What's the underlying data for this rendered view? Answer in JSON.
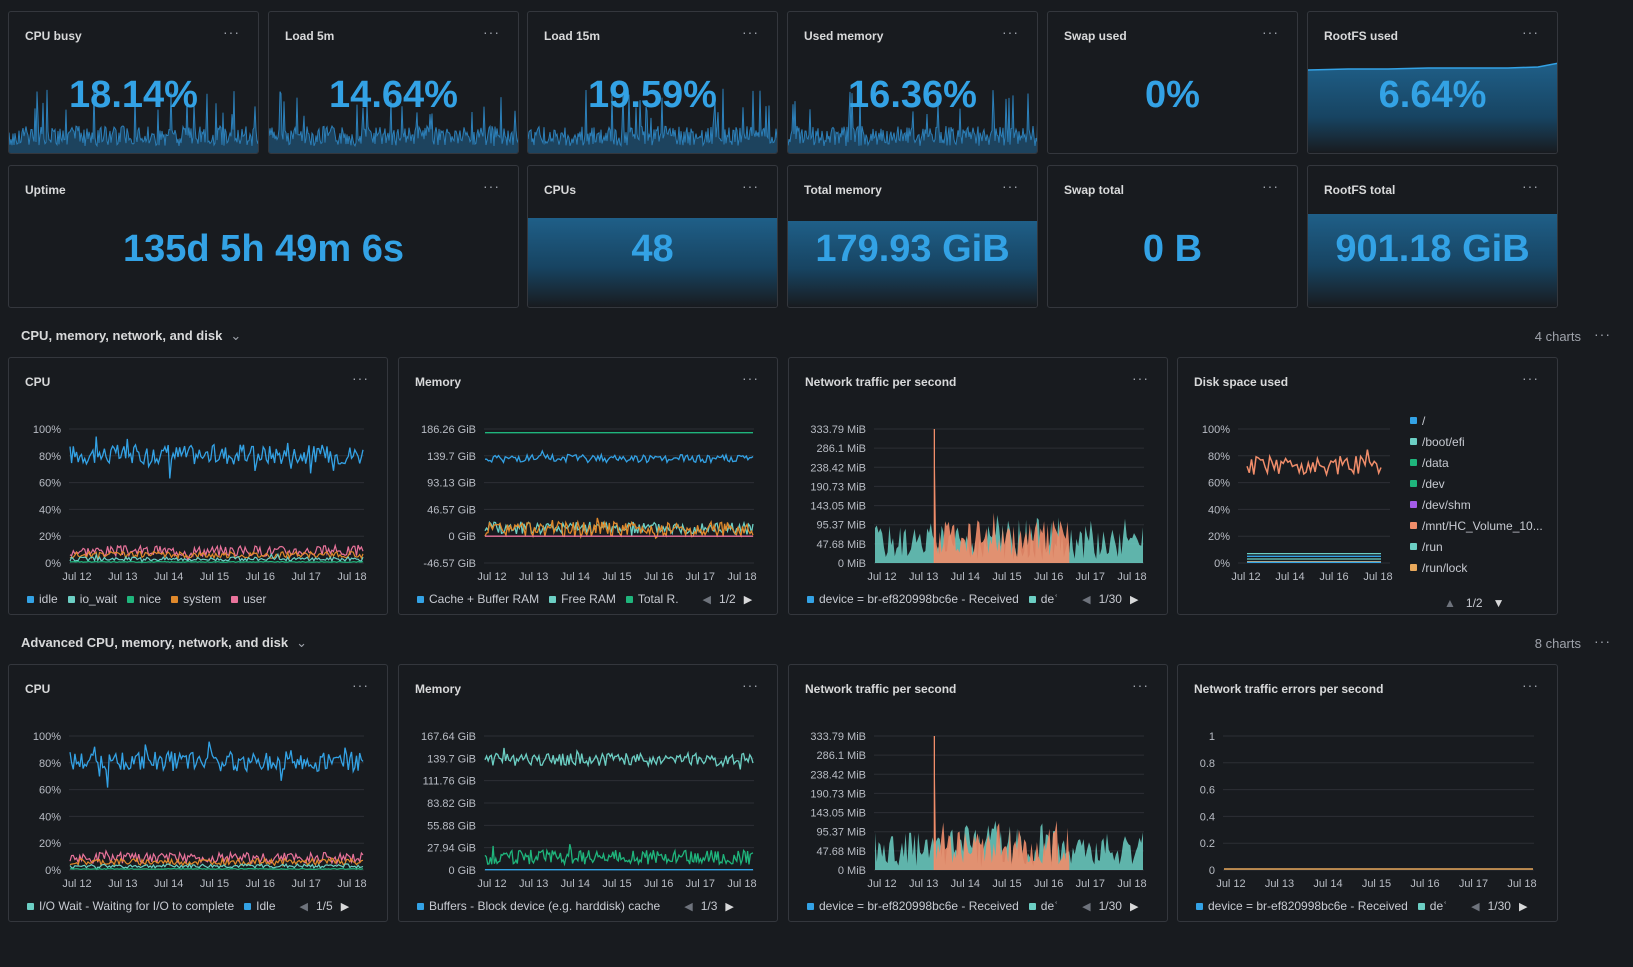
{
  "stats_row1": [
    {
      "title": "CPU busy",
      "value": "18.14%",
      "style": "spark"
    },
    {
      "title": "Load 5m",
      "value": "14.64%",
      "style": "spark"
    },
    {
      "title": "Load 15m",
      "value": "19.59%",
      "style": "spark"
    },
    {
      "title": "Used memory",
      "value": "16.36%",
      "style": "spark"
    },
    {
      "title": "Swap used",
      "value": "0%",
      "style": "none"
    },
    {
      "title": "RootFS used",
      "value": "6.64%",
      "style": "area"
    }
  ],
  "stats_row2": [
    {
      "title": "Uptime",
      "value": "135d 5h 49m 6s",
      "style": "none"
    },
    {
      "title": "CPUs",
      "value": "48",
      "style": "fill"
    },
    {
      "title": "Total memory",
      "value": "179.93 GiB",
      "style": "fill"
    },
    {
      "title": "Swap total",
      "value": "0 B",
      "style": "none"
    },
    {
      "title": "RootFS total",
      "value": "901.18 GiB",
      "style": "fill"
    }
  ],
  "menu_glyph": "···",
  "section1": {
    "title": "CPU, memory, network, and disk",
    "chevron": "⌄",
    "count": "4 charts"
  },
  "section2": {
    "title": "Advanced CPU, memory, network, and disk",
    "chevron": "⌄",
    "count": "8 charts"
  },
  "x_dates": [
    "Jul 12",
    "Jul 13",
    "Jul 14",
    "Jul 15",
    "Jul 16",
    "Jul 17",
    "Jul 18"
  ],
  "x_dates_disk": [
    "Jul 12",
    "Jul 14",
    "Jul 16",
    "Jul 18"
  ],
  "colors": {
    "blue": "#33a2e5",
    "teal": "#6ccfc4",
    "green": "#1fb57c",
    "orange": "#e0892b",
    "pink": "#e9739b",
    "salmon": "#f08d6a",
    "purple": "#a35be8",
    "yellow": "#e8a85b"
  },
  "charts": [
    {
      "title": "CPU",
      "yticks": [
        "100%",
        "80%",
        "60%",
        "40%",
        "20%",
        "0%"
      ],
      "legend": [
        {
          "label": "idle",
          "color": "#33a2e5"
        },
        {
          "label": "io_wait",
          "color": "#6ccfc4"
        },
        {
          "label": "nice",
          "color": "#1fb57c"
        },
        {
          "label": "system",
          "color": "#e0892b"
        },
        {
          "label": "user",
          "color": "#e9739b"
        }
      ],
      "pager": ""
    },
    {
      "title": "Memory",
      "yticks": [
        "186.26 GiB",
        "139.7 GiB",
        "93.13 GiB",
        "46.57 GiB",
        "0 GiB",
        "-46.57 GiB"
      ],
      "legend": [
        {
          "label": "Cache + Buffer RAM",
          "color": "#33a2e5"
        },
        {
          "label": "Free RAM",
          "color": "#6ccfc4"
        },
        {
          "label": "Total R.",
          "color": "#1fb57c"
        }
      ],
      "pager": "1/2"
    },
    {
      "title": "Network traffic per second",
      "yticks": [
        "333.79 MiB",
        "286.1 MiB",
        "238.42 MiB",
        "190.73 MiB",
        "143.05 MiB",
        "95.37 MiB",
        "47.68 MiB",
        "0 MiB"
      ],
      "legend": [
        {
          "label": "device = br-ef820998bc6e - Received",
          "color": "#33a2e5"
        },
        {
          "label": "deʿ",
          "color": "#6ccfc4"
        }
      ],
      "pager": "1/30"
    },
    {
      "title": "Disk space used",
      "yticks": [
        "100%",
        "80%",
        "60%",
        "40%",
        "20%",
        "0%"
      ],
      "legend": [
        {
          "label": "/",
          "color": "#33a2e5"
        },
        {
          "label": "/boot/efi",
          "color": "#6ccfc4"
        },
        {
          "label": "/data",
          "color": "#1fb57c"
        },
        {
          "label": "/dev",
          "color": "#1fb57c"
        },
        {
          "label": "/dev/shm",
          "color": "#a35be8"
        },
        {
          "label": "/mnt/HC_Volume_10...",
          "color": "#f08d6a"
        },
        {
          "label": "/run",
          "color": "#6ccfc4"
        },
        {
          "label": "/run/lock",
          "color": "#e8a85b"
        }
      ],
      "pager": "1/2"
    },
    {
      "title": "CPU",
      "yticks": [
        "100%",
        "80%",
        "60%",
        "40%",
        "20%",
        "0%"
      ],
      "legend": [
        {
          "label": "I/O Wait - Waiting for I/O to complete",
          "color": "#6ccfc4"
        },
        {
          "label": "Idle",
          "color": "#33a2e5"
        }
      ],
      "pager": "1/5"
    },
    {
      "title": "Memory",
      "yticks": [
        "167.64 GiB",
        "139.7 GiB",
        "111.76 GiB",
        "83.82 GiB",
        "55.88 GiB",
        "27.94 GiB",
        "0 GiB"
      ],
      "legend": [
        {
          "label": "Buffers - Block device (e.g. harddisk) cache",
          "color": "#33a2e5"
        }
      ],
      "pager": "1/3"
    },
    {
      "title": "Network traffic per second",
      "yticks": [
        "333.79 MiB",
        "286.1 MiB",
        "238.42 MiB",
        "190.73 MiB",
        "143.05 MiB",
        "95.37 MiB",
        "47.68 MiB",
        "0 MiB"
      ],
      "legend": [
        {
          "label": "device = br-ef820998bc6e - Received",
          "color": "#33a2e5"
        },
        {
          "label": "deʿ",
          "color": "#6ccfc4"
        }
      ],
      "pager": "1/30"
    },
    {
      "title": "Network traffic errors per second",
      "yticks": [
        "1",
        "0.8",
        "0.6",
        "0.4",
        "0.2",
        "0"
      ],
      "legend": [
        {
          "label": "device = br-ef820998bc6e - Received",
          "color": "#33a2e5"
        },
        {
          "label": "deʿ",
          "color": "#6ccfc4"
        }
      ],
      "pager": "1/30"
    }
  ]
}
